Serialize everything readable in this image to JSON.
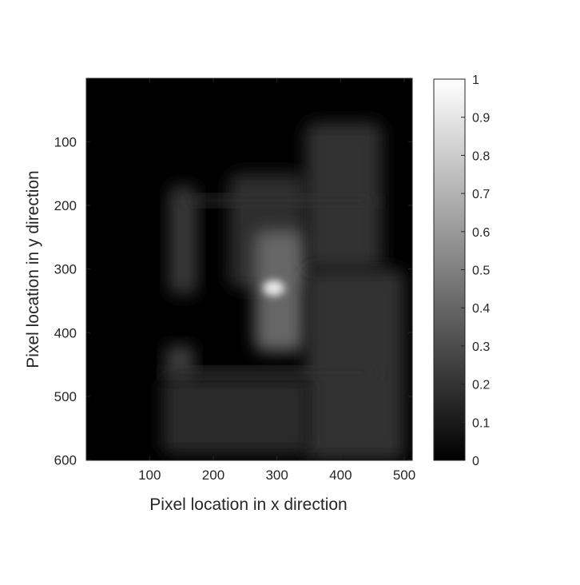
{
  "chart_data": {
    "type": "heatmap",
    "title": "",
    "xlabel": "Pixel location in x direction",
    "ylabel": "Pixel location in y direction",
    "xlim": [
      1,
      512
    ],
    "ylim": [
      1,
      600
    ],
    "y_reversed": true,
    "x_ticks": [
      100,
      200,
      300,
      400,
      500
    ],
    "y_ticks": [
      100,
      200,
      300,
      400,
      500,
      600
    ],
    "colormap": "gray",
    "colorbar": {
      "range": [
        0,
        1
      ],
      "ticks": [
        0,
        0.1,
        0.2,
        0.3,
        0.4,
        0.5,
        0.6,
        0.7,
        0.8,
        0.9,
        1
      ],
      "tick_labels": [
        "0",
        "0.1",
        "0.2",
        "0.3",
        "0.4",
        "0.5",
        "0.6",
        "0.7",
        "0.8",
        "0.9",
        "1"
      ],
      "placement": "right"
    },
    "grid": false,
    "peak": {
      "x": 295,
      "y": 330,
      "value": 1
    },
    "regions": [
      {
        "x": [
          130,
          175
        ],
        "y": [
          170,
          340
        ],
        "value": 0.22
      },
      {
        "x": [
          225,
          345
        ],
        "y": [
          150,
          330
        ],
        "value": 0.18
      },
      {
        "x": [
          265,
          345
        ],
        "y": [
          240,
          430
        ],
        "value": 0.4
      },
      {
        "x": [
          345,
          465
        ],
        "y": [
          70,
          300
        ],
        "value": 0.2
      },
      {
        "x": [
          345,
          500
        ],
        "y": [
          300,
          600
        ],
        "value": 0.2
      },
      {
        "x": [
          120,
          350
        ],
        "y": [
          470,
          590
        ],
        "value": 0.17
      },
      {
        "x": [
          125,
          170
        ],
        "y": [
          420,
          470
        ],
        "value": 0.25
      },
      {
        "x": [
          160,
          460
        ],
        "y": [
          185,
          200
        ],
        "value": 0.2
      },
      {
        "x": [
          120,
          460
        ],
        "y": [
          455,
          470
        ],
        "value": 0.2
      }
    ]
  }
}
